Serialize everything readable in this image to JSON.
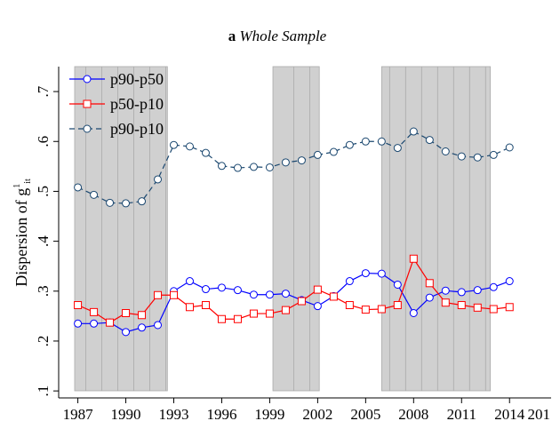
{
  "chart_data": {
    "type": "line",
    "title_label": "a",
    "title": "Whole Sample",
    "ylabel": "Dispersion of g",
    "ylabel_sup": "1",
    "ylabel_sub": "it",
    "x": [
      1987,
      1988,
      1989,
      1990,
      1991,
      1992,
      1993,
      1994,
      1995,
      1996,
      1997,
      1998,
      1999,
      2000,
      2001,
      2002,
      2003,
      2004,
      2005,
      2006,
      2007,
      2008,
      2009,
      2010,
      2011,
      2012,
      2013,
      2014
    ],
    "series": [
      {
        "name": "p90-p50",
        "color": "#0000ff",
        "marker": "circle",
        "dash": false,
        "values": [
          0.235,
          0.235,
          0.237,
          0.218,
          0.227,
          0.232,
          0.3,
          0.32,
          0.304,
          0.307,
          0.302,
          0.293,
          0.293,
          0.295,
          0.282,
          0.27,
          0.29,
          0.32,
          0.336,
          0.335,
          0.313,
          0.256,
          0.287,
          0.301,
          0.298,
          0.302,
          0.308,
          0.32
        ]
      },
      {
        "name": "p50-p10",
        "color": "#ff0000",
        "marker": "square",
        "dash": false,
        "values": [
          0.272,
          0.258,
          0.237,
          0.256,
          0.252,
          0.292,
          0.292,
          0.268,
          0.272,
          0.244,
          0.244,
          0.255,
          0.255,
          0.262,
          0.28,
          0.303,
          0.289,
          0.272,
          0.263,
          0.264,
          0.272,
          0.365,
          0.316,
          0.277,
          0.272,
          0.267,
          0.264,
          0.268
        ]
      },
      {
        "name": "p90-p10",
        "color": "#1a476f",
        "marker": "circle",
        "dash": true,
        "values": [
          0.508,
          0.493,
          0.477,
          0.476,
          0.48,
          0.524,
          0.593,
          0.59,
          0.577,
          0.551,
          0.547,
          0.549,
          0.548,
          0.558,
          0.562,
          0.573,
          0.579,
          0.593,
          0.6,
          0.6,
          0.587,
          0.62,
          0.603,
          0.58,
          0.57,
          0.568,
          0.573,
          0.588
        ]
      }
    ],
    "shaded_periods": [
      [
        1986.8,
        1992.6
      ],
      [
        1999.2,
        2002.1
      ],
      [
        2006.0,
        2012.8
      ]
    ],
    "shade_color": "#d0d0d0",
    "xlim": [
      1985.8,
      2016.6
    ],
    "xticks": [
      1987,
      1990,
      1993,
      1996,
      1999,
      2002,
      2005,
      2008,
      2011,
      2014,
      {
        "value": 2017,
        "label": "201"
      }
    ],
    "ylim": [
      0.086,
      0.75
    ],
    "yticks": [
      {
        "value": 0.1,
        "label": ".1"
      },
      {
        "value": 0.2,
        "label": ".2"
      },
      {
        "value": 0.3,
        "label": ".3"
      },
      {
        "value": 0.4,
        "label": ".4"
      },
      {
        "value": 0.5,
        "label": ".5"
      },
      {
        "value": 0.6,
        "label": ".6"
      },
      {
        "value": 0.7,
        "label": ".7"
      }
    ],
    "legend": "top-left"
  }
}
